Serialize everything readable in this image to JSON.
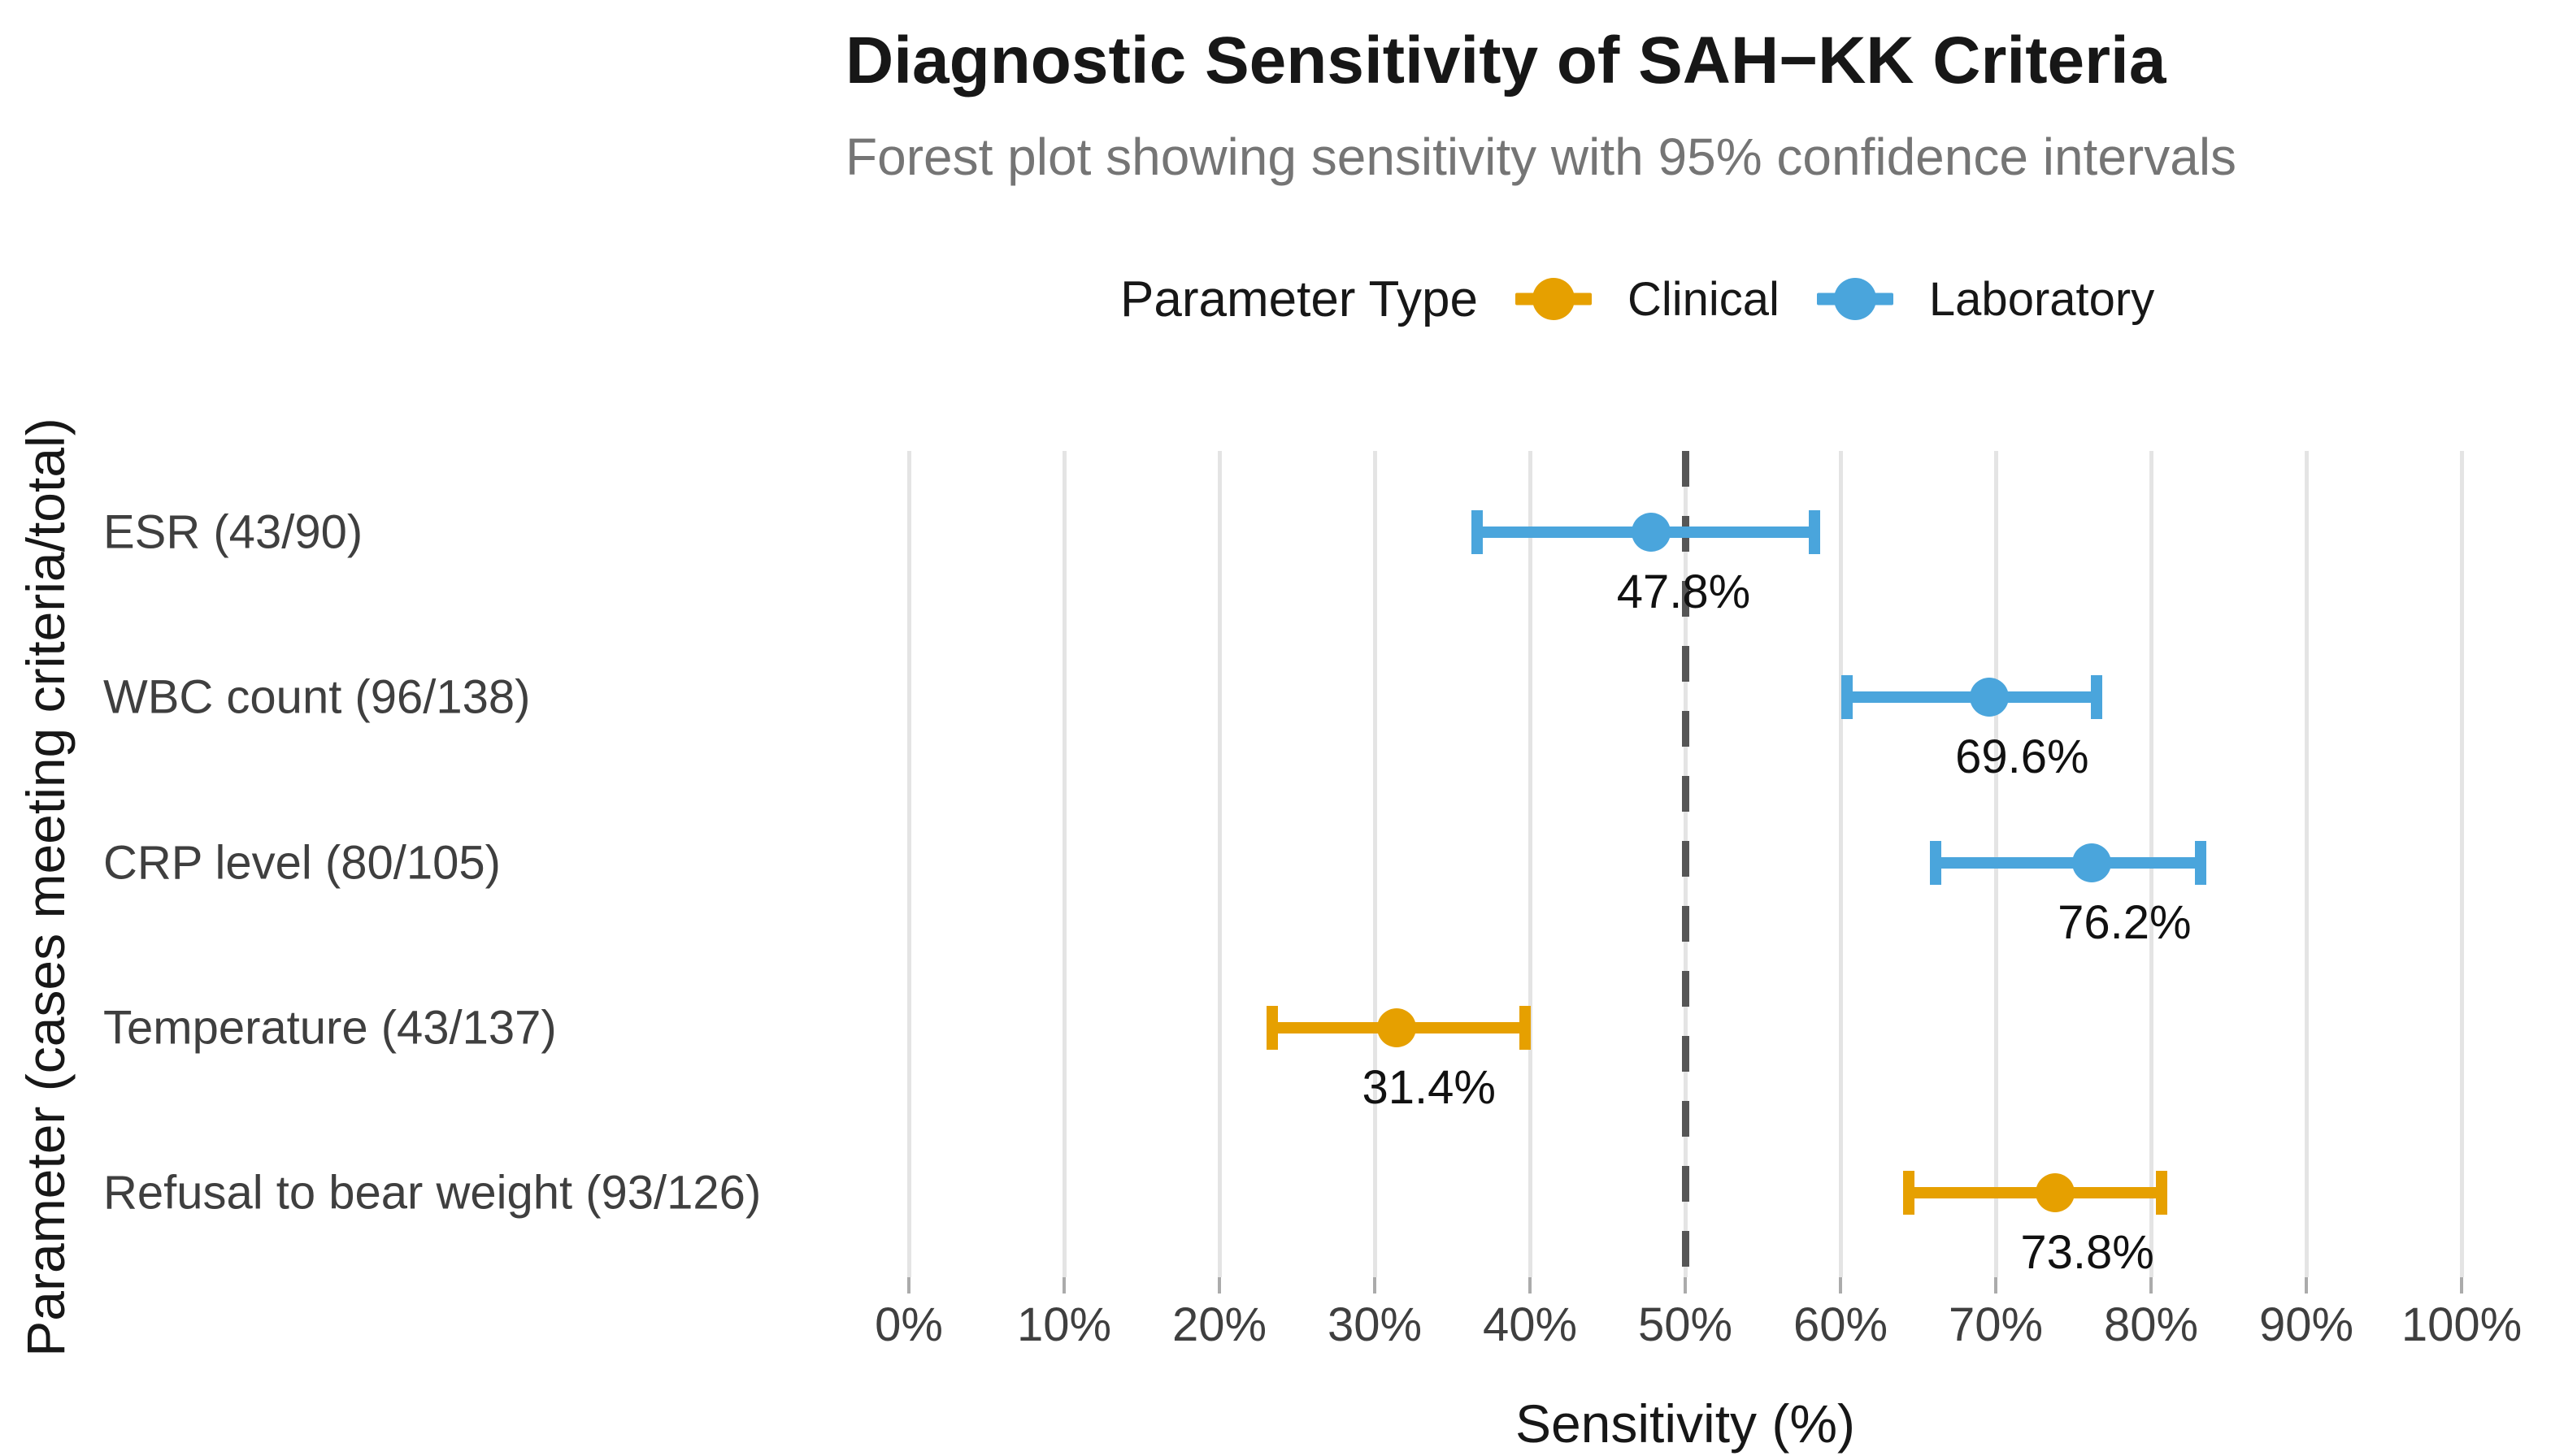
{
  "chart_data": {
    "type": "scatter",
    "variant": "forest-plot",
    "title": "Diagnostic Sensitivity of SAH−KK Criteria",
    "subtitle": "Forest plot showing sensitivity with 95% confidence intervals",
    "xlabel": "Sensitivity (%)",
    "ylabel": "Parameter (cases meeting criteria/total)",
    "xlim": [
      0,
      100
    ],
    "x_tick_labels": [
      "0%",
      "10%",
      "20%",
      "30%",
      "40%",
      "50%",
      "60%",
      "70%",
      "80%",
      "90%",
      "100%"
    ],
    "x_tick_values": [
      0,
      10,
      20,
      30,
      40,
      50,
      60,
      70,
      80,
      90,
      100
    ],
    "reference_line_x": 50,
    "grid": "vertical-major-only",
    "legend": {
      "title": "Parameter Type",
      "position": "top",
      "items": [
        {
          "label": "Clinical",
          "color": "#E6A000"
        },
        {
          "label": "Laboratory",
          "color": "#4AA5DC"
        }
      ]
    },
    "rows": [
      {
        "label": "ESR (43/90)",
        "group": "Laboratory",
        "estimate": 47.8,
        "ci_low": 36.6,
        "ci_high": 58.3,
        "value_label": "47.8%"
      },
      {
        "label": "WBC count (96/138)",
        "group": "Laboratory",
        "estimate": 69.6,
        "ci_low": 60.4,
        "ci_high": 76.5,
        "value_label": "69.6%"
      },
      {
        "label": "CRP level (80/105)",
        "group": "Laboratory",
        "estimate": 76.2,
        "ci_low": 66.1,
        "ci_high": 83.2,
        "value_label": "76.2%"
      },
      {
        "label": "Temperature (43/137)",
        "group": "Clinical",
        "estimate": 31.4,
        "ci_low": 23.4,
        "ci_high": 39.7,
        "value_label": "31.4%"
      },
      {
        "label": "Refusal to bear weight (93/126)",
        "group": "Clinical",
        "estimate": 73.8,
        "ci_low": 64.4,
        "ci_high": 80.7,
        "value_label": "73.8%"
      }
    ],
    "colors": {
      "clinical": "#E6A000",
      "laboratory": "#4AA5DC",
      "reference_line": "#565656",
      "gridline": "#E4E4E4",
      "title_text": "#171717",
      "subtitle_text": "#757575",
      "axis_text": "#3F3F3F"
    }
  }
}
